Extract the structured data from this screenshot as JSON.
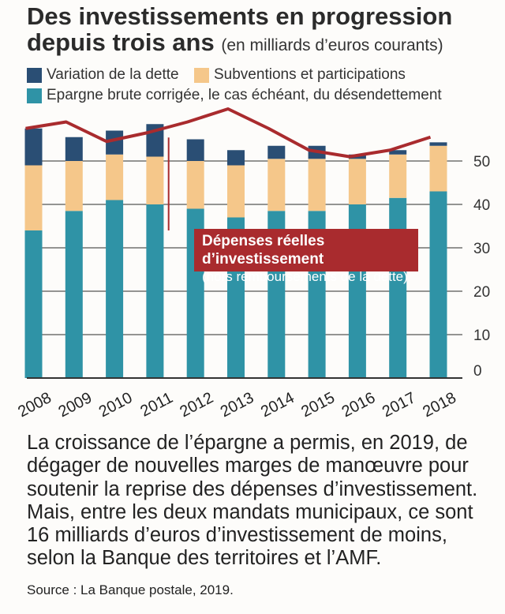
{
  "title": {
    "line1": "Des investissements en progression",
    "line2": "depuis trois ans",
    "subtitle": "(en milliards d’euros courants)"
  },
  "legend": [
    {
      "label": "Variation de la dette",
      "color": "#2a4e74"
    },
    {
      "label": "Subventions et participations",
      "color": "#f5c78a"
    },
    {
      "label": "Epargne brute corrigée, le cas échéant, du désendettement",
      "color": "#2f93a6"
    }
  ],
  "annotation": {
    "title": "Dépenses réelles d’investissement",
    "subtitle": "(hors remboursements de la dette)"
  },
  "chart_data": {
    "type": "bar",
    "stacked": true,
    "categories": [
      "2008",
      "2009",
      "2010",
      "2011",
      "2012",
      "2013",
      "2014",
      "2015",
      "2016",
      "2017",
      "2018"
    ],
    "series": [
      {
        "name": "Epargne brute corrigée, le cas échéant, du désendettement",
        "color": "#2f93a6",
        "values": [
          34,
          38.5,
          41,
          40,
          39,
          37,
          38.5,
          38.5,
          40,
          41.5,
          43
        ]
      },
      {
        "name": "Subventions et participations",
        "color": "#f5c78a",
        "values": [
          15,
          11.5,
          10.5,
          11,
          11,
          12,
          12,
          12,
          10.5,
          10,
          10.5
        ]
      },
      {
        "name": "Variation de la dette",
        "color": "#2a4e74",
        "values": [
          8.5,
          5.5,
          5.5,
          7.5,
          5,
          3.5,
          3,
          3,
          1,
          1,
          0.8
        ]
      }
    ],
    "line": {
      "name": "Dépenses réelles d’investissement",
      "color": "#a92b2e",
      "values": [
        57.5,
        59,
        54.5,
        56.5,
        59,
        62,
        57.5,
        52.5,
        51,
        52.5,
        55.5
      ]
    },
    "yticks": [
      0,
      10,
      20,
      30,
      40,
      50
    ],
    "ylim": [
      0,
      60
    ],
    "axis_position": "right",
    "grid": true
  },
  "body": "La croissance de l’épargne a permis, en 2019, de dégager de nouvelles marges de manœuvre pour soutenir la reprise des dépenses d’investissement. Mais, entre les deux mandats municipaux, ce sont 16 milliards d’euros d’investissement de moins, selon la Banque des territoires et l’AMF.",
  "source": "Source : La Banque postale, 2019."
}
